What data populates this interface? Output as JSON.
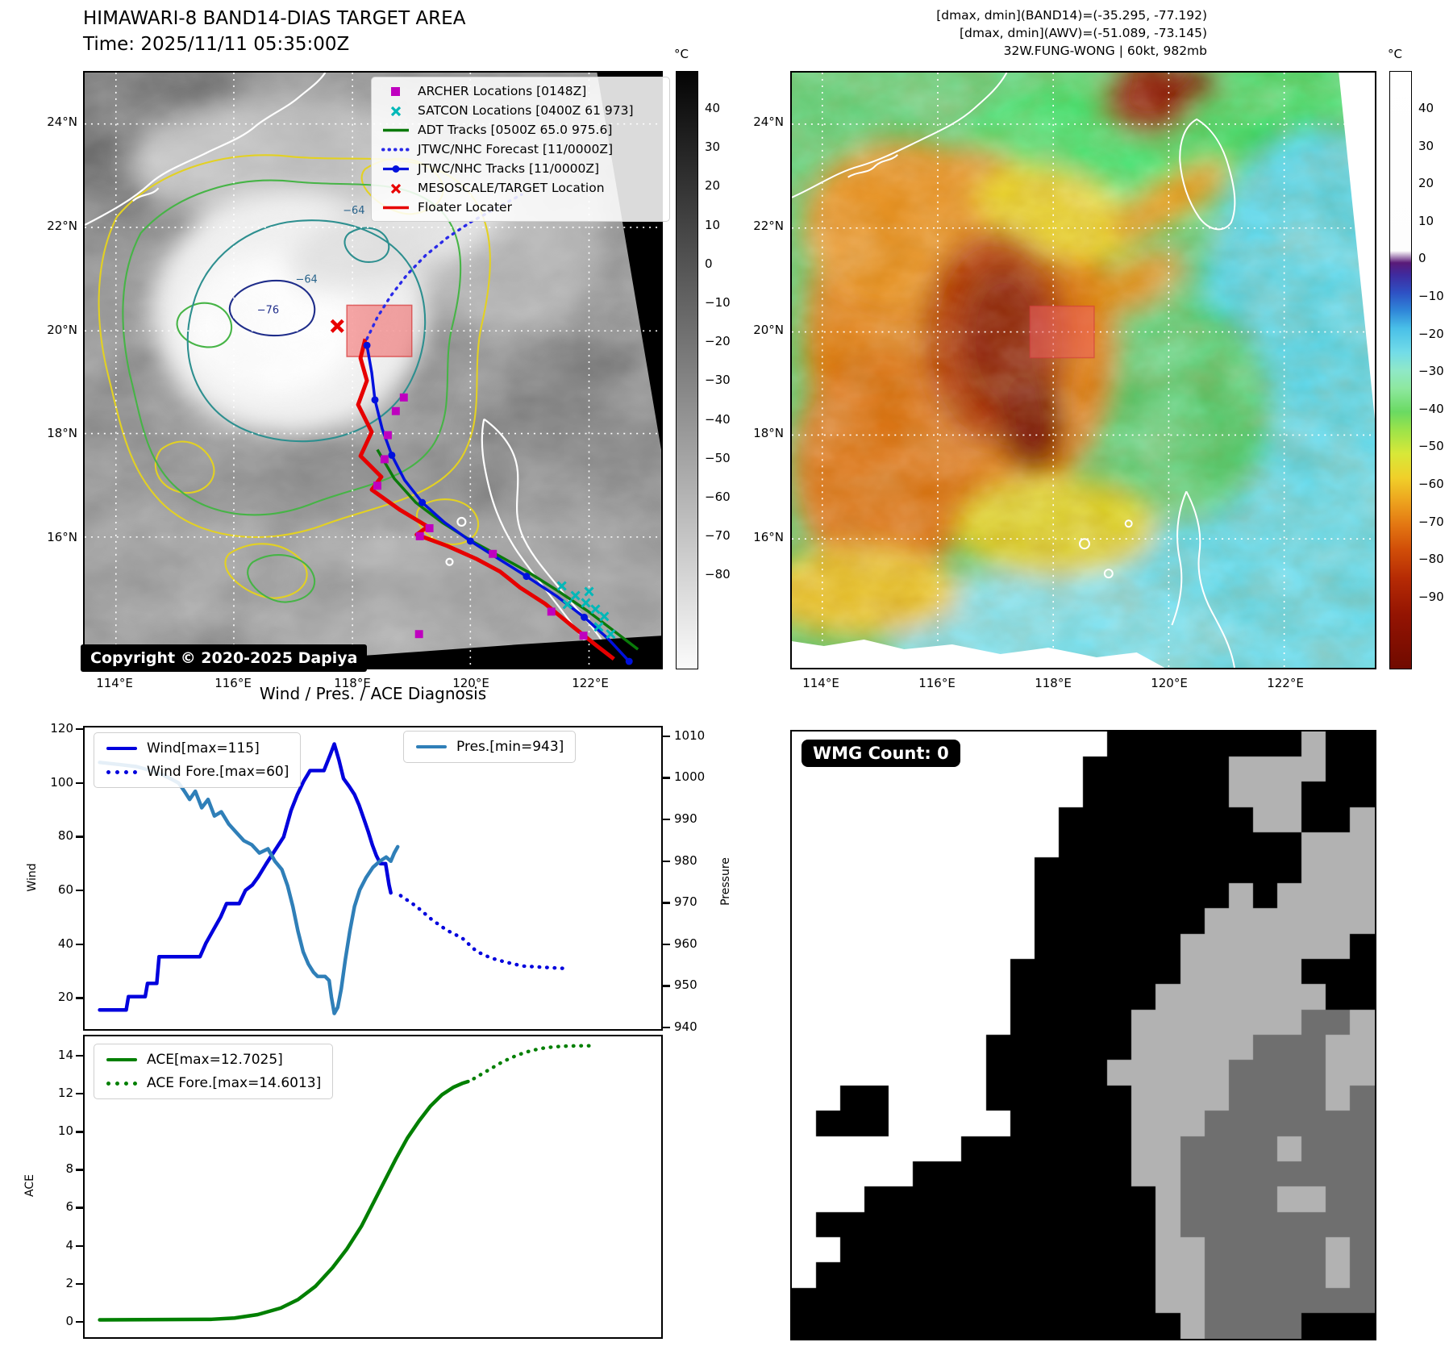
{
  "header": {
    "title_line1": "HIMAWARI-8 BAND14-DIAS TARGET AREA",
    "title_line2": "Time: 2025/11/11 05:35:00Z",
    "info_line1": "[dmax, dmin](BAND14)=(-35.295, -77.192)",
    "info_line2": "[dmax, dmin](AWV)=(-51.089, -73.145)",
    "info_line3": "32W.FUNG-WONG | 60kt, 982mb"
  },
  "band14_map": {
    "legend": [
      {
        "label": "ARCHER Locations [0148Z]",
        "marker": "square",
        "color": "#bf00bf"
      },
      {
        "label": "SATCON Locations [0400Z 61 973]",
        "marker": "x",
        "color": "#00b8b8"
      },
      {
        "label": "ADT Tracks [0500Z 65.0 975.6]",
        "marker": "line",
        "color": "#0a7a0a"
      },
      {
        "label": "JTWC/NHC Forecast [11/0000Z]",
        "marker": "dotted",
        "color": "#2a2ae8"
      },
      {
        "label": "JTWC/NHC Tracks [11/0000Z]",
        "marker": "line-dot",
        "color": "#0011dd"
      },
      {
        "label": "MESOSCALE/TARGET Location",
        "marker": "x",
        "color": "#e80000"
      },
      {
        "label": "Floater Locater",
        "marker": "line",
        "color": "#e60000"
      }
    ],
    "copyright": "Copyright © 2020-2025 Dapiya",
    "contour_labels": [
      "−64",
      "−64",
      "−76"
    ],
    "lat_ticks": [
      "24°N",
      "22°N",
      "20°N",
      "18°N",
      "16°N"
    ],
    "lon_ticks": [
      "114°E",
      "116°E",
      "118°E",
      "120°E",
      "122°E"
    ],
    "colorbar_unit": "°C",
    "colorbar_ticks": [
      "40",
      "30",
      "20",
      "10",
      "0",
      "−10",
      "−20",
      "−30",
      "−40",
      "−50",
      "−60",
      "−70",
      "−80"
    ]
  },
  "awv_map": {
    "lat_ticks": [
      "24°N",
      "22°N",
      "20°N",
      "18°N",
      "16°N"
    ],
    "lon_ticks": [
      "114°E",
      "116°E",
      "118°E",
      "120°E",
      "122°E"
    ],
    "colorbar_unit": "°C",
    "colorbar_ticks": [
      "40",
      "30",
      "20",
      "10",
      "0",
      "−10",
      "−20",
      "−30",
      "−40",
      "−50",
      "−60",
      "−70",
      "−80",
      "−90"
    ]
  },
  "wmg": {
    "label": "WMG Count: 0",
    "palette": {
      "w": "#ffffff",
      "b": "#000000",
      "l": "#b2b2b2",
      "d": "#6f6f6f"
    },
    "grid": [
      "wwwwwwwwwwwwwbbbbbbbblbb",
      "wwwwwwwwwwwwbbbbbbllllbb",
      "wwwwwwwwwwwwbbbbbblllbbb",
      "wwwwwwwwwwwbbbbbbbbllbbl",
      "wwwwwwwwwwwbbbbbbbbbblll",
      "wwwwwwwwwwbbbbbbbbbbblll",
      "wwwwwwwwwwbbbbbbbblbllll",
      "wwwwwwwwwwbbbbbbblllllll",
      "wwwwwwwwwwbbbbbblllllllb",
      "wwwwwwwwwbbbbbbblllllbbb",
      "wwwwwwwwwbbbbbblllllllbb",
      "wwwwwwwwwbbbbblllllllddl",
      "wwwwwwwwbbbbbbllllldddll",
      "wwwwwwwwbbbbblllllddddll",
      "wwbbwwwwbbbbbbllllddddld",
      "wbbbwwwwwbbbbblllddddddd",
      "wwwwwwwbbbbbbbllddddlddd",
      "wwwwwbbbbbbbbblldddddddd",
      "wwwbbbbbbbbbbbblddddlldd",
      "wbbbbbbbbbbbbbbldddddddd",
      "wwbbbbbbbbbbbbblldddddld",
      "wbbbbbbbbbbbbbblldddddld",
      "bbbbbbbbbbbbbbbllddddddd",
      "bbbbbbbbbbbbbbbblddddbbb"
    ]
  },
  "chart_data": [
    {
      "type": "line",
      "title": "Wind / Pres. / ACE Diagnosis",
      "ylabel": "Wind",
      "y2label": "Pressure",
      "ylim": [
        7.8,
        121.2
      ],
      "yticks": [
        120,
        100,
        80,
        60,
        40,
        20
      ],
      "y2lim": [
        939.2,
        1012.5
      ],
      "y2ticks": [
        1010,
        1000,
        990,
        980,
        970,
        960,
        950,
        940
      ],
      "grid": false,
      "legend_left": [
        "Wind[max=115]",
        "Wind Fore.[max=60]"
      ],
      "legend_right": [
        "Pres.[min=943]"
      ],
      "series": [
        {
          "name": "Wind[max=115]",
          "color": "#0000dd",
          "style": "solid",
          "axis": "y",
          "points": [
            [
              0.026,
              15
            ],
            [
              0.072,
              15
            ],
            [
              0.076,
              20
            ],
            [
              0.105,
              20
            ],
            [
              0.109,
              25
            ],
            [
              0.125,
              25
            ],
            [
              0.129,
              35
            ],
            [
              0.2,
              35
            ],
            [
              0.21,
              40
            ],
            [
              0.223,
              45
            ],
            [
              0.236,
              50
            ],
            [
              0.246,
              55
            ],
            [
              0.268,
              55
            ],
            [
              0.279,
              60
            ],
            [
              0.291,
              62
            ],
            [
              0.301,
              65
            ],
            [
              0.315,
              70
            ],
            [
              0.33,
              75
            ],
            [
              0.345,
              80
            ],
            [
              0.358,
              90
            ],
            [
              0.369,
              96
            ],
            [
              0.38,
              101
            ],
            [
              0.391,
              105
            ],
            [
              0.415,
              105
            ],
            [
              0.426,
              111
            ],
            [
              0.433,
              115
            ],
            [
              0.441,
              109
            ],
            [
              0.449,
              102
            ],
            [
              0.459,
              99
            ],
            [
              0.468,
              96
            ],
            [
              0.476,
              92
            ],
            [
              0.484,
              87
            ],
            [
              0.492,
              82
            ],
            [
              0.499,
              77
            ],
            [
              0.506,
              73
            ],
            [
              0.513,
              70
            ],
            [
              0.522,
              70
            ],
            [
              0.528,
              62
            ],
            [
              0.531,
              59
            ]
          ]
        },
        {
          "name": "Wind Fore.[max=60]",
          "color": "#0000dd",
          "style": "dotted",
          "axis": "y",
          "points": [
            [
              0.548,
              58
            ],
            [
              0.575,
              54
            ],
            [
              0.602,
              49
            ],
            [
              0.628,
              45
            ],
            [
              0.655,
              42
            ],
            [
              0.68,
              37
            ],
            [
              0.705,
              34.5
            ],
            [
              0.73,
              33
            ],
            [
              0.76,
              31.5
            ],
            [
              0.8,
              31
            ],
            [
              0.84,
              30.5
            ]
          ]
        },
        {
          "name": "Pres.[min=943]",
          "color": "#2f7fb8",
          "style": "solid",
          "axis": "y2",
          "points": [
            [
              0.026,
              1004
            ],
            [
              0.06,
              1003.5
            ],
            [
              0.09,
              1003
            ],
            [
              0.115,
              1002
            ],
            [
              0.135,
              1001
            ],
            [
              0.15,
              1000
            ],
            [
              0.163,
              999
            ],
            [
              0.173,
              997
            ],
            [
              0.182,
              995
            ],
            [
              0.192,
              997
            ],
            [
              0.203,
              993
            ],
            [
              0.214,
              995
            ],
            [
              0.225,
              991
            ],
            [
              0.237,
              992
            ],
            [
              0.25,
              989
            ],
            [
              0.263,
              987
            ],
            [
              0.276,
              985
            ],
            [
              0.29,
              984
            ],
            [
              0.303,
              982
            ],
            [
              0.318,
              983
            ],
            [
              0.33,
              980
            ],
            [
              0.342,
              978
            ],
            [
              0.352,
              974
            ],
            [
              0.361,
              969
            ],
            [
              0.37,
              963
            ],
            [
              0.379,
              958
            ],
            [
              0.388,
              955
            ],
            [
              0.397,
              953
            ],
            [
              0.404,
              952
            ],
            [
              0.417,
              952
            ],
            [
              0.424,
              951
            ],
            [
              0.428,
              947
            ],
            [
              0.433,
              943
            ],
            [
              0.439,
              944.5
            ],
            [
              0.445,
              949
            ],
            [
              0.452,
              956
            ],
            [
              0.46,
              963
            ],
            [
              0.468,
              969
            ],
            [
              0.477,
              973
            ],
            [
              0.488,
              976
            ],
            [
              0.5,
              978.5
            ],
            [
              0.512,
              980
            ],
            [
              0.523,
              981
            ],
            [
              0.531,
              980
            ],
            [
              0.537,
              982
            ],
            [
              0.543,
              983.5
            ]
          ]
        }
      ]
    },
    {
      "type": "line",
      "ylabel": "ACE",
      "ylim": [
        -0.9,
        15.1
      ],
      "yticks": [
        14,
        12,
        10,
        8,
        6,
        4,
        2,
        0
      ],
      "grid": false,
      "legend_left": [
        "ACE[max=12.7025]",
        "ACE Fore.[max=14.6013]"
      ],
      "series": [
        {
          "name": "ACE[max=12.7025]",
          "color": "#007f00",
          "style": "solid",
          "axis": "y",
          "points": [
            [
              0.026,
              0.02
            ],
            [
              0.22,
              0.05
            ],
            [
              0.26,
              0.12
            ],
            [
              0.3,
              0.3
            ],
            [
              0.34,
              0.65
            ],
            [
              0.37,
              1.1
            ],
            [
              0.4,
              1.8
            ],
            [
              0.43,
              2.8
            ],
            [
              0.455,
              3.8
            ],
            [
              0.48,
              5.0
            ],
            [
              0.5,
              6.2
            ],
            [
              0.52,
              7.4
            ],
            [
              0.54,
              8.6
            ],
            [
              0.56,
              9.7
            ],
            [
              0.58,
              10.6
            ],
            [
              0.6,
              11.4
            ],
            [
              0.62,
              12.0
            ],
            [
              0.64,
              12.4
            ],
            [
              0.655,
              12.6
            ],
            [
              0.665,
              12.7
            ]
          ]
        },
        {
          "name": "ACE Fore.[max=14.6013]",
          "color": "#007f00",
          "style": "dotted",
          "axis": "y",
          "points": [
            [
              0.675,
              12.85
            ],
            [
              0.7,
              13.3
            ],
            [
              0.725,
              13.75
            ],
            [
              0.75,
              14.1
            ],
            [
              0.775,
              14.35
            ],
            [
              0.8,
              14.5
            ],
            [
              0.83,
              14.58
            ],
            [
              0.86,
              14.6
            ],
            [
              0.875,
              14.6
            ]
          ]
        }
      ]
    }
  ]
}
